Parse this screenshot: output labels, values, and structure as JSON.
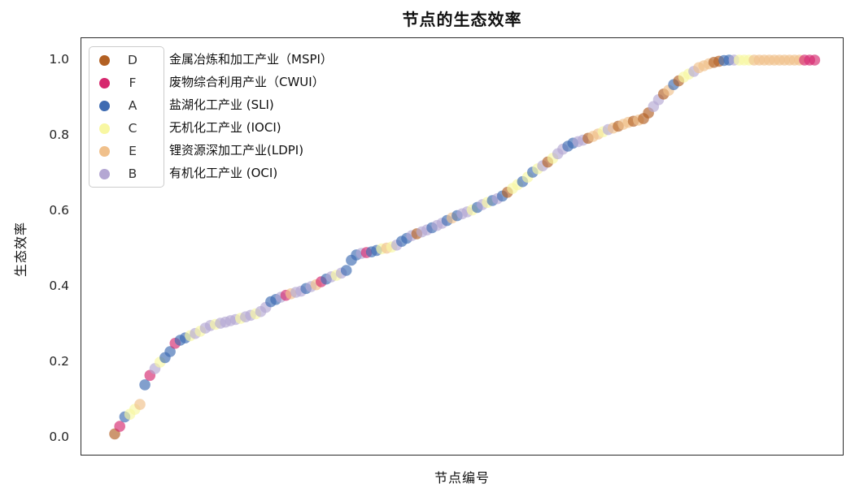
{
  "title": "节点的生态效率",
  "axes": {
    "y_label": "生态效率",
    "x_label": "节点编号",
    "y_ticks": [
      "1.0",
      "0.8",
      "0.6",
      "0.4",
      "0.2",
      "0.0"
    ],
    "x_tick_labels_visible": false
  },
  "legend": {
    "position": "upper left",
    "entries": [
      {
        "letter": "D",
        "color": "#b26023",
        "label": "金属冶炼和加工产业（MSPI）"
      },
      {
        "letter": "F",
        "color": "#d6286e",
        "label": "废物综合利用产业（CWUI）"
      },
      {
        "letter": "A",
        "color": "#3e6bb2",
        "label": "盐湖化工产业 (SLI)"
      },
      {
        "letter": "C",
        "color": "#f8f7a2",
        "label": "无机化工产业 (IOCI)"
      },
      {
        "letter": "E",
        "color": "#f0c08b",
        "label": "锂资源深加工产业(LDPI)"
      },
      {
        "letter": "B",
        "color": "#b4a7d3",
        "label": "有机化工产业 (OCI)"
      }
    ]
  },
  "chart_data": {
    "type": "scatter",
    "title": "节点的生态效率",
    "xlabel": "节点编号",
    "ylabel": "生态效率",
    "ylim": [
      -0.05,
      1.06
    ],
    "grid": false,
    "legend_position": "upper left",
    "marker_alpha": 0.65,
    "x_meaning": "node index, points sorted ascending by eco-efficiency, no x tick labels shown",
    "series_info": {
      "D": {
        "color": "#b26023",
        "name": "金属冶炼和加工产业（MSPI）"
      },
      "F": {
        "color": "#d6286e",
        "name": "废物综合利用产业（CWUI）"
      },
      "A": {
        "color": "#3e6bb2",
        "name": "盐湖化工产业 (SLI)"
      },
      "C": {
        "color": "#f8f7a2",
        "name": "无机化工产业 (IOCI)"
      },
      "E": {
        "color": "#f0c08b",
        "name": "锂资源深加工产业(LDPI)"
      },
      "B": {
        "color": "#b4a7d3",
        "name": "有机化工产业 (OCI)"
      }
    },
    "points": [
      [
        0.01,
        "D"
      ],
      [
        0.03,
        "F"
      ],
      [
        0.055,
        "A"
      ],
      [
        0.062,
        "C"
      ],
      [
        0.075,
        "C"
      ],
      [
        0.088,
        "E"
      ],
      [
        0.14,
        "A"
      ],
      [
        0.165,
        "F"
      ],
      [
        0.183,
        "B"
      ],
      [
        0.2,
        "C"
      ],
      [
        0.212,
        "A"
      ],
      [
        0.228,
        "A"
      ],
      [
        0.25,
        "F"
      ],
      [
        0.258,
        "A"
      ],
      [
        0.264,
        "A"
      ],
      [
        0.27,
        "C"
      ],
      [
        0.276,
        "B"
      ],
      [
        0.282,
        "C"
      ],
      [
        0.29,
        "B"
      ],
      [
        0.297,
        "B"
      ],
      [
        0.3,
        "C"
      ],
      [
        0.303,
        "B"
      ],
      [
        0.306,
        "B"
      ],
      [
        0.31,
        "B"
      ],
      [
        0.313,
        "B"
      ],
      [
        0.316,
        "C"
      ],
      [
        0.32,
        "B"
      ],
      [
        0.324,
        "B"
      ],
      [
        0.328,
        "C"
      ],
      [
        0.334,
        "B"
      ],
      [
        0.345,
        "B"
      ],
      [
        0.36,
        "A"
      ],
      [
        0.366,
        "A"
      ],
      [
        0.372,
        "B"
      ],
      [
        0.377,
        "F"
      ],
      [
        0.381,
        "E"
      ],
      [
        0.385,
        "B"
      ],
      [
        0.388,
        "B"
      ],
      [
        0.395,
        "A"
      ],
      [
        0.4,
        "B"
      ],
      [
        0.405,
        "E"
      ],
      [
        0.413,
        "F"
      ],
      [
        0.42,
        "A"
      ],
      [
        0.426,
        "B"
      ],
      [
        0.43,
        "C"
      ],
      [
        0.436,
        "B"
      ],
      [
        0.443,
        "A"
      ],
      [
        0.47,
        "A"
      ],
      [
        0.484,
        "A"
      ],
      [
        0.488,
        "B"
      ],
      [
        0.49,
        "F"
      ],
      [
        0.492,
        "A"
      ],
      [
        0.496,
        "A"
      ],
      [
        0.5,
        "C"
      ],
      [
        0.502,
        "E"
      ],
      [
        0.505,
        "C"
      ],
      [
        0.51,
        "B"
      ],
      [
        0.52,
        "A"
      ],
      [
        0.528,
        "A"
      ],
      [
        0.535,
        "B"
      ],
      [
        0.54,
        "D"
      ],
      [
        0.545,
        "B"
      ],
      [
        0.55,
        "B"
      ],
      [
        0.556,
        "A"
      ],
      [
        0.562,
        "B"
      ],
      [
        0.568,
        "B"
      ],
      [
        0.575,
        "A"
      ],
      [
        0.582,
        "E"
      ],
      [
        0.588,
        "A"
      ],
      [
        0.593,
        "B"
      ],
      [
        0.598,
        "B"
      ],
      [
        0.603,
        "C"
      ],
      [
        0.61,
        "A"
      ],
      [
        0.617,
        "B"
      ],
      [
        0.623,
        "C"
      ],
      [
        0.628,
        "A"
      ],
      [
        0.633,
        "B"
      ],
      [
        0.64,
        "A"
      ],
      [
        0.65,
        "D"
      ],
      [
        0.66,
        "C"
      ],
      [
        0.67,
        "C"
      ],
      [
        0.678,
        "A"
      ],
      [
        0.69,
        "C"
      ],
      [
        0.703,
        "A"
      ],
      [
        0.712,
        "C"
      ],
      [
        0.72,
        "B"
      ],
      [
        0.73,
        "D"
      ],
      [
        0.74,
        "C"
      ],
      [
        0.752,
        "B"
      ],
      [
        0.764,
        "B"
      ],
      [
        0.772,
        "A"
      ],
      [
        0.78,
        "A"
      ],
      [
        0.784,
        "B"
      ],
      [
        0.788,
        "B"
      ],
      [
        0.793,
        "D"
      ],
      [
        0.798,
        "E"
      ],
      [
        0.804,
        "E"
      ],
      [
        0.81,
        "C"
      ],
      [
        0.816,
        "B"
      ],
      [
        0.82,
        "E"
      ],
      [
        0.825,
        "D"
      ],
      [
        0.83,
        "E"
      ],
      [
        0.835,
        "E"
      ],
      [
        0.838,
        "D"
      ],
      [
        0.841,
        "E"
      ],
      [
        0.845,
        "D"
      ],
      [
        0.86,
        "D"
      ],
      [
        0.877,
        "B"
      ],
      [
        0.895,
        "B"
      ],
      [
        0.91,
        "D"
      ],
      [
        0.92,
        "E"
      ],
      [
        0.935,
        "A"
      ],
      [
        0.945,
        "D"
      ],
      [
        0.955,
        "C"
      ],
      [
        0.963,
        "C"
      ],
      [
        0.97,
        "B"
      ],
      [
        0.98,
        "E"
      ],
      [
        0.985,
        "E"
      ],
      [
        0.99,
        "E"
      ],
      [
        0.994,
        "D"
      ],
      [
        0.997,
        "D"
      ],
      [
        0.999,
        "A"
      ],
      [
        1.0,
        "A"
      ],
      [
        1.0,
        "B"
      ],
      [
        1.0,
        "C"
      ],
      [
        1.0,
        "C"
      ],
      [
        1.0,
        "C"
      ],
      [
        1.0,
        "E"
      ],
      [
        1.0,
        "E"
      ],
      [
        1.0,
        "E"
      ],
      [
        1.0,
        "E"
      ],
      [
        1.0,
        "E"
      ],
      [
        1.0,
        "E"
      ],
      [
        1.0,
        "E"
      ],
      [
        1.0,
        "E"
      ],
      [
        1.0,
        "E"
      ],
      [
        1.0,
        "E"
      ],
      [
        1.0,
        "F"
      ],
      [
        1.0,
        "F"
      ],
      [
        1.0,
        "F"
      ]
    ]
  }
}
